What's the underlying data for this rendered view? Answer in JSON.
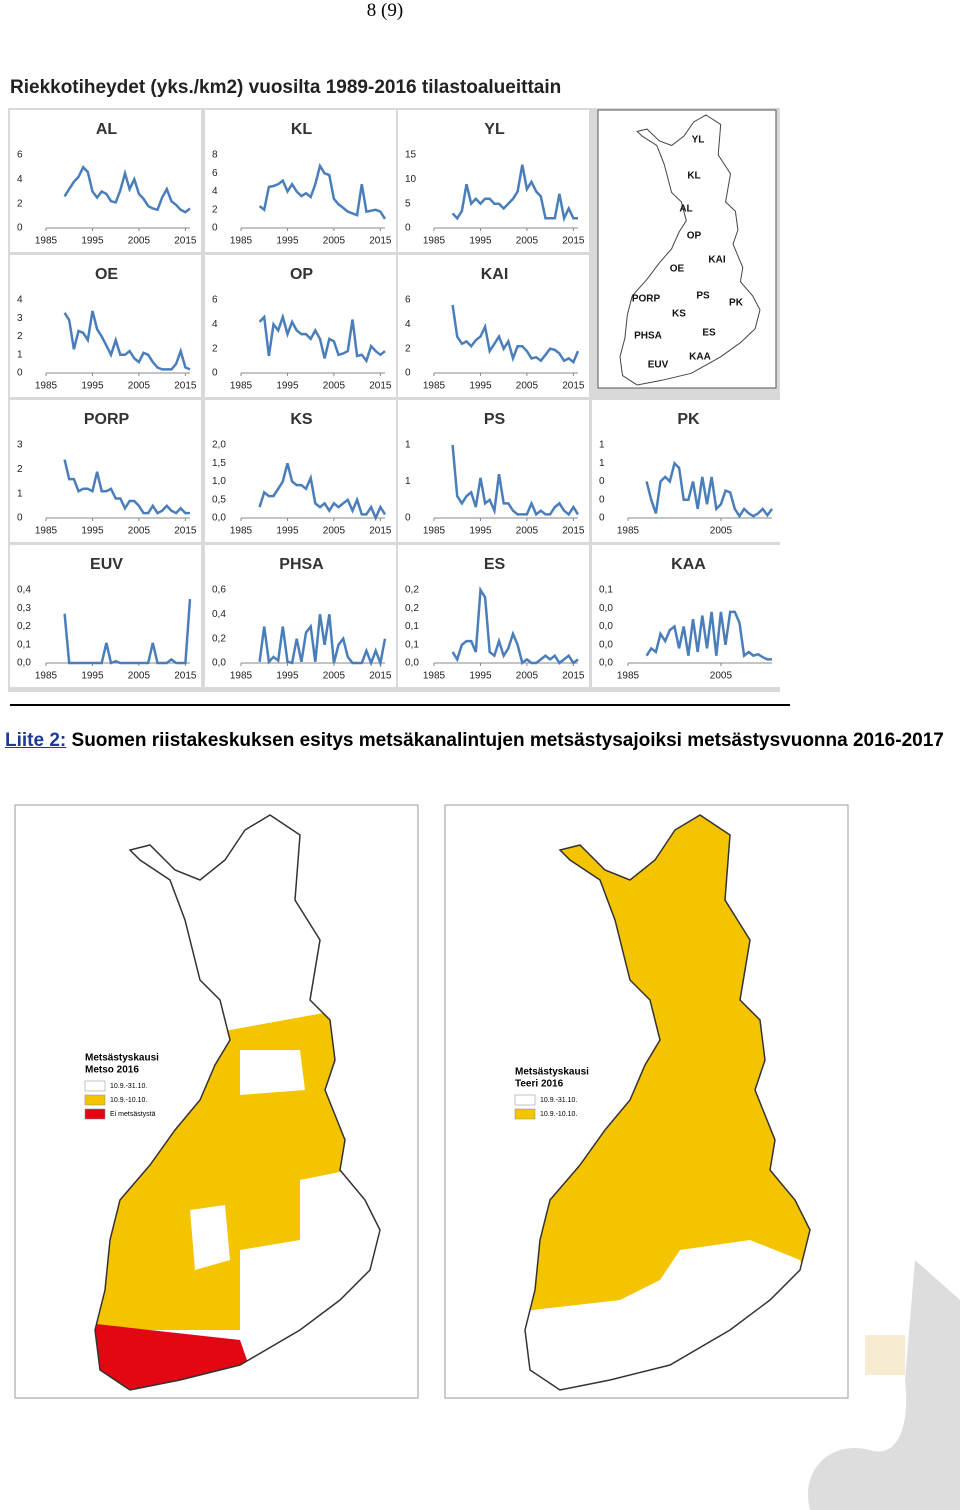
{
  "page_number": "8 (9)",
  "figure": {
    "title": "Riekkotiheydet (yks./km2) vuosilta 1989-2016 tilastoalueittain",
    "map_labels": [
      "YL",
      "KL",
      "AL",
      "OP",
      "OE",
      "KAI",
      "PORP",
      "PS",
      "PK",
      "KS",
      "PHSA",
      "ES",
      "EUV",
      "KAA"
    ]
  },
  "chart_data": [
    {
      "type": "line",
      "title": "AL",
      "color": "#4a7ebb",
      "x": [
        1989,
        1990,
        1991,
        1992,
        1993,
        1994,
        1995,
        1996,
        1997,
        1998,
        1999,
        2000,
        2001,
        2002,
        2003,
        2004,
        2005,
        2006,
        2007,
        2008,
        2009,
        2010,
        2011,
        2012,
        2013,
        2014,
        2015,
        2016
      ],
      "values": [
        2.6,
        3.2,
        3.8,
        4.2,
        5,
        4.6,
        3,
        2.5,
        3,
        2.8,
        2.2,
        2.1,
        3.1,
        4.5,
        3.2,
        4,
        2.8,
        2.4,
        1.8,
        1.6,
        1.5,
        2.5,
        3.2,
        2.2,
        1.9,
        1.5,
        1.3,
        1.6
      ],
      "xlim": [
        1985,
        2016
      ],
      "xticks": [
        1985,
        1995,
        2005,
        2015
      ],
      "ylim": [
        0,
        6
      ],
      "yticks": [
        0,
        2,
        4,
        6
      ]
    },
    {
      "type": "line",
      "title": "KL",
      "color": "#4a7ebb",
      "x": [
        1989,
        1990,
        1991,
        1992,
        1993,
        1994,
        1995,
        1996,
        1997,
        1998,
        1999,
        2000,
        2001,
        2002,
        2003,
        2004,
        2005,
        2006,
        2007,
        2008,
        2009,
        2010,
        2011,
        2012,
        2013,
        2014,
        2015,
        2016
      ],
      "values": [
        2.4,
        2,
        4.5,
        4.6,
        4.8,
        5.2,
        4,
        4.8,
        4,
        3.5,
        3.8,
        3.4,
        4.8,
        6.8,
        6,
        5.8,
        3.2,
        2.6,
        2.2,
        1.8,
        1.6,
        1.4,
        4.8,
        1.8,
        1.9,
        2,
        1.8,
        1
      ],
      "xlim": [
        1985,
        2016
      ],
      "xticks": [
        1985,
        1995,
        2005,
        2015
      ],
      "ylim": [
        0,
        8
      ],
      "yticks": [
        0,
        2,
        4,
        6,
        8
      ]
    },
    {
      "type": "line",
      "title": "YL",
      "color": "#4a7ebb",
      "x": [
        1989,
        1990,
        1991,
        1992,
        1993,
        1994,
        1995,
        1996,
        1997,
        1998,
        1999,
        2000,
        2001,
        2002,
        2003,
        2004,
        2005,
        2006,
        2007,
        2008,
        2009,
        2010,
        2011,
        2012,
        2013,
        2014,
        2015,
        2016
      ],
      "values": [
        3,
        2,
        3.5,
        9,
        5,
        6,
        5,
        6,
        6,
        5,
        5,
        4,
        5,
        6,
        7.5,
        13,
        8,
        9.5,
        7.5,
        6.5,
        2,
        2,
        2,
        7,
        2,
        4,
        2,
        2
      ],
      "xlim": [
        1985,
        2016
      ],
      "xticks": [
        1985,
        1995,
        2005,
        2015
      ],
      "ylim": [
        0,
        15
      ],
      "yticks": [
        0,
        5,
        10,
        15
      ]
    },
    {
      "type": "line",
      "title": "OE",
      "color": "#4a7ebb",
      "x": [
        1989,
        1990,
        1991,
        1992,
        1993,
        1994,
        1995,
        1996,
        1997,
        1998,
        1999,
        2000,
        2001,
        2002,
        2003,
        2004,
        2005,
        2006,
        2007,
        2008,
        2009,
        2010,
        2011,
        2012,
        2013,
        2014,
        2015,
        2016
      ],
      "values": [
        3.3,
        2.9,
        1.3,
        2.3,
        2.2,
        1.8,
        3.4,
        2.4,
        2,
        1.5,
        1,
        1.8,
        1,
        1,
        1.2,
        0.8,
        0.6,
        1.1,
        1,
        0.6,
        0.3,
        0.2,
        0.2,
        0.2,
        0.5,
        1.2,
        0.3,
        0.2
      ],
      "xlim": [
        1985,
        2016
      ],
      "xticks": [
        1985,
        1995,
        2005,
        2015
      ],
      "ylim": [
        0,
        4
      ],
      "yticks": [
        0,
        1,
        2,
        3,
        4
      ]
    },
    {
      "type": "line",
      "title": "OP",
      "color": "#4a7ebb",
      "x": [
        1989,
        1990,
        1991,
        1992,
        1993,
        1994,
        1995,
        1996,
        1997,
        1998,
        1999,
        2000,
        2001,
        2002,
        2003,
        2004,
        2005,
        2006,
        2007,
        2008,
        2009,
        2010,
        2011,
        2012,
        2013,
        2014,
        2015,
        2016
      ],
      "values": [
        4.2,
        4.6,
        1.4,
        4,
        3.5,
        4.6,
        3.2,
        4.2,
        3.5,
        3.2,
        3.2,
        2.8,
        3.5,
        2.8,
        1.2,
        2.8,
        2.6,
        1.5,
        1.6,
        1.8,
        4.4,
        1.4,
        1.5,
        1,
        2.2,
        1.8,
        1.5,
        1.8
      ],
      "xlim": [
        1985,
        2016
      ],
      "xticks": [
        1985,
        1995,
        2005,
        2015
      ],
      "ylim": [
        0,
        6
      ],
      "yticks": [
        0,
        2,
        4,
        6
      ]
    },
    {
      "type": "line",
      "title": "KAI",
      "color": "#4a7ebb",
      "x": [
        1989,
        1990,
        1991,
        1992,
        1993,
        1994,
        1995,
        1996,
        1997,
        1998,
        1999,
        2000,
        2001,
        2002,
        2003,
        2004,
        2005,
        2006,
        2007,
        2008,
        2009,
        2010,
        2011,
        2012,
        2013,
        2014,
        2015,
        2016
      ],
      "values": [
        5.6,
        3,
        2.4,
        2.6,
        2.2,
        2.7,
        3,
        3.8,
        1.8,
        2.4,
        3,
        2,
        2.6,
        1.2,
        2.2,
        2.2,
        1.8,
        1.2,
        1.3,
        1,
        1.5,
        2,
        1.9,
        1.6,
        1,
        1.2,
        0.9,
        1.8
      ],
      "xlim": [
        1985,
        2016
      ],
      "xticks": [
        1985,
        1995,
        2005,
        2015
      ],
      "ylim": [
        0,
        6
      ],
      "yticks": [
        0,
        2,
        4,
        6
      ]
    },
    {
      "type": "line",
      "title": "PORP",
      "color": "#4a7ebb",
      "x": [
        1989,
        1990,
        1991,
        1992,
        1993,
        1994,
        1995,
        1996,
        1997,
        1998,
        1999,
        2000,
        2001,
        2002,
        2003,
        2004,
        2005,
        2006,
        2007,
        2008,
        2009,
        2010,
        2011,
        2012,
        2013,
        2014,
        2015,
        2016
      ],
      "values": [
        2.4,
        1.6,
        1.6,
        1.1,
        1.2,
        1.2,
        1.1,
        1.9,
        1.1,
        1.1,
        1.2,
        0.8,
        0.8,
        0.4,
        0.7,
        0.7,
        0.5,
        0.2,
        0.2,
        0.5,
        0.2,
        0.3,
        0.5,
        0.3,
        0.2,
        0.4,
        0.2,
        0.2
      ],
      "xlim": [
        1985,
        2016
      ],
      "xticks": [
        1985,
        1995,
        2005,
        2015
      ],
      "ylim": [
        0,
        3
      ],
      "yticks": [
        0,
        1,
        2,
        3
      ]
    },
    {
      "type": "line",
      "title": "KS",
      "color": "#4a7ebb",
      "x": [
        1989,
        1990,
        1991,
        1992,
        1993,
        1994,
        1995,
        1996,
        1997,
        1998,
        1999,
        2000,
        2001,
        2002,
        2003,
        2004,
        2005,
        2006,
        2007,
        2008,
        2009,
        2010,
        2011,
        2012,
        2013,
        2014,
        2015,
        2016
      ],
      "values": [
        0.3,
        0.7,
        0.6,
        0.6,
        0.8,
        1,
        1.5,
        1,
        0.9,
        0.9,
        0.8,
        1.1,
        0.4,
        0.3,
        0.4,
        0.2,
        0.4,
        0.3,
        0.4,
        0.5,
        0.2,
        0.5,
        0.1,
        0.1,
        0.3,
        0,
        0.3,
        0.1
      ],
      "xlim": [
        1985,
        2016
      ],
      "xticks": [
        1985,
        1995,
        2005,
        2015
      ],
      "ylim": [
        0,
        2
      ],
      "yticks": [
        {
          "value": 0,
          "label": "0,0"
        },
        {
          "value": 0.5,
          "label": "0,5"
        },
        {
          "value": 1,
          "label": "1,0"
        },
        {
          "value": 1.5,
          "label": "1,5"
        },
        {
          "value": 2,
          "label": "2,0"
        }
      ]
    },
    {
      "type": "line",
      "title": "PS",
      "color": "#4a7ebb",
      "x": [
        1989,
        1990,
        1991,
        1992,
        1993,
        1994,
        1995,
        1996,
        1997,
        1998,
        1999,
        2000,
        2001,
        2002,
        2003,
        2004,
        2005,
        2006,
        2007,
        2008,
        2009,
        2010,
        2011,
        2012,
        2013,
        2014,
        2015,
        2016
      ],
      "values": [
        1,
        0.3,
        0.2,
        0.3,
        0.35,
        0.15,
        0.55,
        0.2,
        0.25,
        0.1,
        0.6,
        0.2,
        0.2,
        0.1,
        0.05,
        0.05,
        0.05,
        0.2,
        0.05,
        0.1,
        0.05,
        0.05,
        0.15,
        0.2,
        0.1,
        0.05,
        0.15,
        0.05
      ],
      "xlim": [
        1985,
        2016
      ],
      "xticks": [
        1985,
        1995,
        2005,
        2015
      ],
      "ylim": [
        0,
        1
      ],
      "yticks": [
        0,
        {
          "value": 0.5,
          "label": "1"
        },
        1
      ]
    },
    {
      "type": "line",
      "title": "PK",
      "color": "#4a7ebb",
      "x": [
        1989,
        1990,
        1991,
        1992,
        1993,
        1994,
        1995,
        1996,
        1997,
        1998,
        1999,
        2000,
        2001,
        2002,
        2003,
        2004,
        2005,
        2006,
        2007,
        2008,
        2009,
        2010,
        2011,
        2012,
        2013,
        2014,
        2015,
        2016
      ],
      "values": [
        0.4,
        0.2,
        0.05,
        0.4,
        0.45,
        0.4,
        0.6,
        0.55,
        0.2,
        0.2,
        0.4,
        0.1,
        0.45,
        0.15,
        0.45,
        0.1,
        0.15,
        0.3,
        0.28,
        0.1,
        0.02,
        0.1,
        0.05,
        0.02,
        0.05,
        0.1,
        0.03,
        0.1
      ],
      "xlim": [
        1985,
        2016
      ],
      "xticks": [
        1985,
        2005
      ],
      "ylim": [
        0,
        0.8
      ],
      "yticks": [
        0,
        {
          "value": 0.2,
          "label": "0"
        },
        {
          "value": 0.4,
          "label": "0"
        },
        {
          "value": 0.6,
          "label": "1"
        },
        {
          "value": 0.8,
          "label": "1"
        }
      ]
    },
    {
      "type": "line",
      "title": "EUV",
      "color": "#4a7ebb",
      "x": [
        1989,
        1990,
        1991,
        1992,
        1993,
        1994,
        1995,
        1996,
        1997,
        1998,
        1999,
        2000,
        2001,
        2002,
        2003,
        2004,
        2005,
        2006,
        2007,
        2008,
        2009,
        2010,
        2011,
        2012,
        2013,
        2014,
        2015,
        2016
      ],
      "values": [
        0.27,
        0,
        0,
        0,
        0,
        0,
        0,
        0,
        0,
        0.11,
        0,
        0.01,
        0,
        0,
        0,
        0,
        0,
        0,
        0,
        0.11,
        0,
        0,
        0,
        0.02,
        0,
        0,
        0,
        0.35
      ],
      "xlim": [
        1985,
        2016
      ],
      "xticks": [
        1985,
        1995,
        2005,
        2015
      ],
      "ylim": [
        0,
        0.4
      ],
      "yticks": [
        {
          "value": 0,
          "label": "0,0"
        },
        {
          "value": 0.1,
          "label": "0,1"
        },
        {
          "value": 0.2,
          "label": "0,2"
        },
        {
          "value": 0.3,
          "label": "0,3"
        },
        {
          "value": 0.4,
          "label": "0,4"
        }
      ]
    },
    {
      "type": "line",
      "title": "PHSA",
      "color": "#4a7ebb",
      "x": [
        1989,
        1990,
        1991,
        1992,
        1993,
        1994,
        1995,
        1996,
        1997,
        1998,
        1999,
        2000,
        2001,
        2002,
        2003,
        2004,
        2005,
        2006,
        2007,
        2008,
        2009,
        2010,
        2011,
        2012,
        2013,
        2014,
        2015,
        2016
      ],
      "values": [
        0.01,
        0.3,
        0.01,
        0.05,
        0.02,
        0.3,
        0.01,
        0,
        0.2,
        0.01,
        0.25,
        0.3,
        0.01,
        0.4,
        0.15,
        0.4,
        0,
        0.15,
        0.2,
        0.05,
        0,
        0,
        0,
        0.1,
        0,
        0.1,
        0,
        0.2
      ],
      "xlim": [
        1985,
        2016
      ],
      "xticks": [
        1985,
        1995,
        2005,
        2015
      ],
      "ylim": [
        0,
        0.6
      ],
      "yticks": [
        {
          "value": 0,
          "label": "0,0"
        },
        {
          "value": 0.2,
          "label": "0,2"
        },
        {
          "value": 0.4,
          "label": "0,4"
        },
        {
          "value": 0.6,
          "label": "0,6"
        }
      ]
    },
    {
      "type": "line",
      "title": "ES",
      "color": "#4a7ebb",
      "x": [
        1989,
        1990,
        1991,
        1992,
        1993,
        1994,
        1995,
        1996,
        1997,
        1998,
        1999,
        2000,
        2001,
        2002,
        2003,
        2004,
        2005,
        2006,
        2007,
        2008,
        2009,
        2010,
        2011,
        2012,
        2013,
        2014,
        2015,
        2016
      ],
      "values": [
        0.03,
        0.01,
        0.05,
        0.06,
        0.06,
        0.03,
        0.2,
        0.18,
        0.03,
        0.02,
        0.06,
        0.02,
        0.04,
        0.08,
        0.05,
        0,
        0.01,
        0,
        0,
        0.01,
        0.02,
        0.01,
        0.02,
        0,
        0.01,
        0.02,
        0,
        0.01
      ],
      "xlim": [
        1985,
        2016
      ],
      "xticks": [
        1985,
        1995,
        2005,
        2015
      ],
      "ylim": [
        0,
        0.2
      ],
      "yticks": [
        {
          "value": 0,
          "label": "0,0"
        },
        {
          "value": 0.05,
          "label": "0,1"
        },
        {
          "value": 0.1,
          "label": "0,1"
        },
        {
          "value": 0.15,
          "label": "0,2"
        },
        {
          "value": 0.2,
          "label": "0,2"
        }
      ]
    },
    {
      "type": "line",
      "title": "KAA",
      "color": "#4a7ebb",
      "x": [
        1989,
        1990,
        1991,
        1992,
        1993,
        1994,
        1995,
        1996,
        1997,
        1998,
        1999,
        2000,
        2001,
        2002,
        2003,
        2004,
        2005,
        2006,
        2007,
        2008,
        2009,
        2010,
        2011,
        2012,
        2013,
        2014,
        2015,
        2016
      ],
      "values": [
        0.01,
        0.02,
        0.015,
        0.04,
        0.03,
        0.045,
        0.05,
        0.02,
        0.05,
        0.01,
        0.06,
        0.015,
        0.065,
        0.02,
        0.07,
        0.01,
        0.07,
        0.025,
        0.07,
        0.07,
        0.055,
        0.01,
        0.015,
        0.01,
        0.012,
        0.008,
        0.005,
        0.005
      ],
      "xlim": [
        1985,
        2016
      ],
      "xticks": [
        1985,
        2005
      ],
      "ylim": [
        0,
        0.1
      ],
      "yticks": [
        {
          "value": 0,
          "label": "0,0"
        },
        {
          "value": 0.025,
          "label": "0,0"
        },
        {
          "value": 0.05,
          "label": "0,0"
        },
        {
          "value": 0.075,
          "label": "0,0"
        },
        {
          "value": 0.1,
          "label": "0,1"
        }
      ]
    }
  ],
  "caption": {
    "label": "Liite 2:",
    "text": "Suomen riistakeskuksen esitys metsäkanalintujen metsästysajoiksi metsästysvuonna 2016-2017"
  },
  "maps": [
    {
      "legend_title": "Metsästyskausi",
      "legend_subtitle": "Metso 2016",
      "legend_items": [
        "10.9.-31.10.",
        "10.9.-10.10.",
        "Ei metsästystä"
      ],
      "legend_colors": [
        "#ffffff",
        "#f5c400",
        "#e30613"
      ]
    },
    {
      "legend_title": "Metsästyskausi",
      "legend_subtitle": "Teeri 2016",
      "legend_items": [
        "10.9.-31.10.",
        "10.9.-10.10."
      ],
      "legend_colors": [
        "#ffffff",
        "#f5c400"
      ]
    }
  ]
}
